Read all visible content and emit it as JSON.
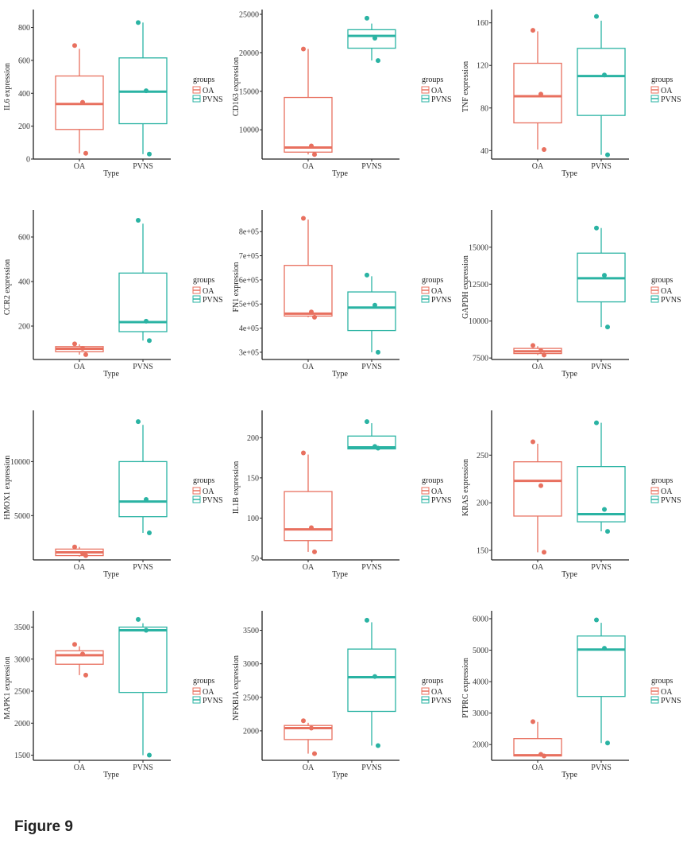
{
  "figure_label": "Figure 9",
  "colors": {
    "OA": "#E8705F",
    "PVNS": "#2AB3A3",
    "axis": "#222222"
  },
  "chart_data": [
    {
      "type": "box",
      "ylabel": "IL6 expression",
      "xlabel": "Type",
      "categories": [
        "OA",
        "PVNS"
      ],
      "ylim": [
        0,
        880
      ],
      "yticks": [
        0,
        200,
        400,
        600,
        800
      ],
      "ytick_labels": [
        "0",
        "200",
        "400",
        "600",
        "800"
      ],
      "legend_title": "groups",
      "legend": [
        "OA",
        "PVNS"
      ],
      "boxes": [
        {
          "group": "OA",
          "min": 35,
          "q1": 180,
          "median": 335,
          "q3": 505,
          "max": 670,
          "points": [
            690,
            345,
            35
          ]
        },
        {
          "group": "PVNS",
          "min": 30,
          "q1": 215,
          "median": 410,
          "q3": 615,
          "max": 830,
          "points": [
            830,
            415,
            30
          ]
        }
      ]
    },
    {
      "type": "box",
      "ylabel": "CD163 expression",
      "xlabel": "Type",
      "categories": [
        "OA",
        "PVNS"
      ],
      "ylim": [
        6200,
        25000
      ],
      "yticks": [
        10000,
        15000,
        20000,
        25000
      ],
      "ytick_labels": [
        "10000",
        "15000",
        "20000",
        "25000"
      ],
      "legend_title": "groups",
      "legend": [
        "OA",
        "PVNS"
      ],
      "boxes": [
        {
          "group": "OA",
          "min": 6800,
          "q1": 7100,
          "median": 7700,
          "q3": 14200,
          "max": 20500,
          "points": [
            20500,
            7900,
            6800
          ]
        },
        {
          "group": "PVNS",
          "min": 19000,
          "q1": 20600,
          "median": 22200,
          "q3": 23000,
          "max": 23800,
          "points": [
            24500,
            21900,
            19000
          ]
        }
      ]
    },
    {
      "type": "box",
      "ylabel": "TNF expression",
      "xlabel": "Type",
      "categories": [
        "OA",
        "PVNS"
      ],
      "ylim": [
        32,
        168
      ],
      "yticks": [
        40,
        80,
        120,
        160
      ],
      "ytick_labels": [
        "40",
        "80",
        "120",
        "160"
      ],
      "legend_title": "groups",
      "legend": [
        "OA",
        "PVNS"
      ],
      "boxes": [
        {
          "group": "OA",
          "min": 41,
          "q1": 66,
          "median": 91,
          "q3": 122,
          "max": 152,
          "points": [
            153,
            93,
            41
          ]
        },
        {
          "group": "PVNS",
          "min": 36,
          "q1": 73,
          "median": 110,
          "q3": 136,
          "max": 162,
          "points": [
            166,
            111,
            36
          ]
        }
      ]
    },
    {
      "type": "box",
      "ylabel": "CCR2 expression",
      "xlabel": "Type",
      "categories": [
        "OA",
        "PVNS"
      ],
      "ylim": [
        50,
        700
      ],
      "yticks": [
        200,
        400,
        600
      ],
      "ytick_labels": [
        "200",
        "400",
        "600"
      ],
      "legend_title": "groups",
      "legend": [
        "OA",
        "PVNS"
      ],
      "boxes": [
        {
          "group": "OA",
          "min": 72,
          "q1": 85,
          "median": 98,
          "q3": 108,
          "max": 118,
          "points": [
            120,
            100,
            72
          ]
        },
        {
          "group": "PVNS",
          "min": 135,
          "q1": 175,
          "median": 218,
          "q3": 438,
          "max": 660,
          "points": [
            675,
            222,
            135
          ]
        }
      ]
    },
    {
      "type": "box",
      "ylabel": "FN1 expression",
      "xlabel": "Type",
      "categories": [
        "OA",
        "PVNS"
      ],
      "ylim": [
        270000,
        870000
      ],
      "yticks": [
        300000,
        400000,
        500000,
        600000,
        700000,
        800000
      ],
      "ytick_labels": [
        "3e+05",
        "4e+05",
        "5e+05",
        "6e+05",
        "7e+05",
        "8e+05"
      ],
      "legend_title": "groups",
      "legend": [
        "OA",
        "PVNS"
      ],
      "boxes": [
        {
          "group": "OA",
          "min": 445000,
          "q1": 450000,
          "median": 460000,
          "q3": 660000,
          "max": 850000,
          "points": [
            855000,
            467000,
            445000
          ]
        },
        {
          "group": "PVNS",
          "min": 300000,
          "q1": 390000,
          "median": 485000,
          "q3": 550000,
          "max": 615000,
          "points": [
            620000,
            495000,
            300000
          ]
        }
      ]
    },
    {
      "type": "box",
      "ylabel": "GAPDH expression",
      "xlabel": "Type",
      "categories": [
        "OA",
        "PVNS"
      ],
      "ylim": [
        7400,
        17200
      ],
      "yticks": [
        7500,
        10000,
        12500,
        15000
      ],
      "ytick_labels": [
        "7500",
        "10000",
        "12500",
        "15000"
      ],
      "legend_title": "groups",
      "legend": [
        "OA",
        "PVNS"
      ],
      "boxes": [
        {
          "group": "OA",
          "min": 7700,
          "q1": 7800,
          "median": 7950,
          "q3": 8150,
          "max": 8300,
          "points": [
            8350,
            8000,
            7700
          ]
        },
        {
          "group": "PVNS",
          "min": 9600,
          "q1": 11300,
          "median": 12900,
          "q3": 14600,
          "max": 16300,
          "points": [
            16300,
            13100,
            9600
          ]
        }
      ]
    },
    {
      "type": "box",
      "ylabel": "HMOX1 expression",
      "xlabel": "Type",
      "categories": [
        "OA",
        "PVNS"
      ],
      "ylim": [
        900,
        14300
      ],
      "yticks": [
        5000,
        10000
      ],
      "ytick_labels": [
        "5000",
        "10000"
      ],
      "legend_title": "groups",
      "legend": [
        "OA",
        "PVNS"
      ],
      "boxes": [
        {
          "group": "OA",
          "min": 1200,
          "q1": 1300,
          "median": 1600,
          "q3": 1900,
          "max": 2100,
          "points": [
            2100,
            1500,
            1300
          ]
        },
        {
          "group": "PVNS",
          "min": 3400,
          "q1": 4900,
          "median": 6300,
          "q3": 10000,
          "max": 13400,
          "points": [
            13700,
            6500,
            3400
          ]
        }
      ]
    },
    {
      "type": "box",
      "ylabel": "IL1B expression",
      "xlabel": "Type",
      "categories": [
        "OA",
        "PVNS"
      ],
      "ylim": [
        48,
        228
      ],
      "yticks": [
        50,
        100,
        150,
        200
      ],
      "ytick_labels": [
        "50",
        "100",
        "150",
        "200"
      ],
      "legend_title": "groups",
      "legend": [
        "OA",
        "PVNS"
      ],
      "boxes": [
        {
          "group": "OA",
          "min": 58,
          "q1": 72,
          "median": 86,
          "q3": 133,
          "max": 179,
          "points": [
            181,
            88,
            58
          ]
        },
        {
          "group": "PVNS",
          "min": 186,
          "q1": 186,
          "median": 188,
          "q3": 202,
          "max": 218,
          "points": [
            220,
            189,
            187
          ]
        }
      ]
    },
    {
      "type": "box",
      "ylabel": "KRAS expression",
      "xlabel": "Type",
      "categories": [
        "OA",
        "PVNS"
      ],
      "ylim": [
        140,
        292
      ],
      "yticks": [
        150,
        200,
        250
      ],
      "ytick_labels": [
        "150",
        "200",
        "250"
      ],
      "legend_title": "groups",
      "legend": [
        "OA",
        "PVNS"
      ],
      "boxes": [
        {
          "group": "OA",
          "min": 148,
          "q1": 186,
          "median": 223,
          "q3": 243,
          "max": 262,
          "points": [
            264,
            218,
            148
          ]
        },
        {
          "group": "PVNS",
          "min": 170,
          "q1": 180,
          "median": 188,
          "q3": 238,
          "max": 284,
          "points": [
            284,
            193,
            170
          ]
        }
      ]
    },
    {
      "type": "box",
      "ylabel": "MAPK1 expression",
      "xlabel": "Type",
      "categories": [
        "OA",
        "PVNS"
      ],
      "ylim": [
        1420,
        3680
      ],
      "yticks": [
        1500,
        2000,
        2500,
        3000,
        3500
      ],
      "ytick_labels": [
        "1500",
        "2000",
        "2500",
        "3000",
        "3500"
      ],
      "legend_title": "groups",
      "legend": [
        "OA",
        "PVNS"
      ],
      "boxes": [
        {
          "group": "OA",
          "min": 2750,
          "q1": 2920,
          "median": 3060,
          "q3": 3130,
          "max": 3200,
          "points": [
            3230,
            3080,
            2750
          ]
        },
        {
          "group": "PVNS",
          "min": 1500,
          "q1": 2480,
          "median": 3450,
          "q3": 3500,
          "max": 3560,
          "points": [
            3620,
            3450,
            1500
          ]
        }
      ]
    },
    {
      "type": "box",
      "ylabel": "NFKBIA expression",
      "xlabel": "Type",
      "categories": [
        "OA",
        "PVNS"
      ],
      "ylim": [
        1560,
        3720
      ],
      "yticks": [
        2000,
        2500,
        3000,
        3500
      ],
      "ytick_labels": [
        "2000",
        "2500",
        "3000",
        "3500"
      ],
      "legend_title": "groups",
      "legend": [
        "OA",
        "PVNS"
      ],
      "boxes": [
        {
          "group": "OA",
          "min": 1660,
          "q1": 1870,
          "median": 2040,
          "q3": 2080,
          "max": 2120,
          "points": [
            2150,
            2040,
            1660
          ]
        },
        {
          "group": "PVNS",
          "min": 1780,
          "q1": 2290,
          "median": 2800,
          "q3": 3220,
          "max": 3620,
          "points": [
            3650,
            2810,
            1780
          ]
        }
      ]
    },
    {
      "type": "box",
      "ylabel": "PTPRC expression",
      "xlabel": "Type",
      "categories": [
        "OA",
        "PVNS"
      ],
      "ylim": [
        1500,
        6100
      ],
      "yticks": [
        2000,
        3000,
        4000,
        5000,
        6000
      ],
      "ytick_labels": [
        "2000",
        "3000",
        "4000",
        "5000",
        "6000"
      ],
      "legend_title": "groups",
      "legend": [
        "OA",
        "PVNS"
      ],
      "boxes": [
        {
          "group": "OA",
          "min": 1630,
          "q1": 1640,
          "median": 1660,
          "q3": 2190,
          "max": 2720,
          "points": [
            2730,
            1690,
            1640
          ]
        },
        {
          "group": "PVNS",
          "min": 2050,
          "q1": 3530,
          "median": 5020,
          "q3": 5450,
          "max": 5870,
          "points": [
            5960,
            5060,
            2050
          ]
        }
      ]
    }
  ]
}
